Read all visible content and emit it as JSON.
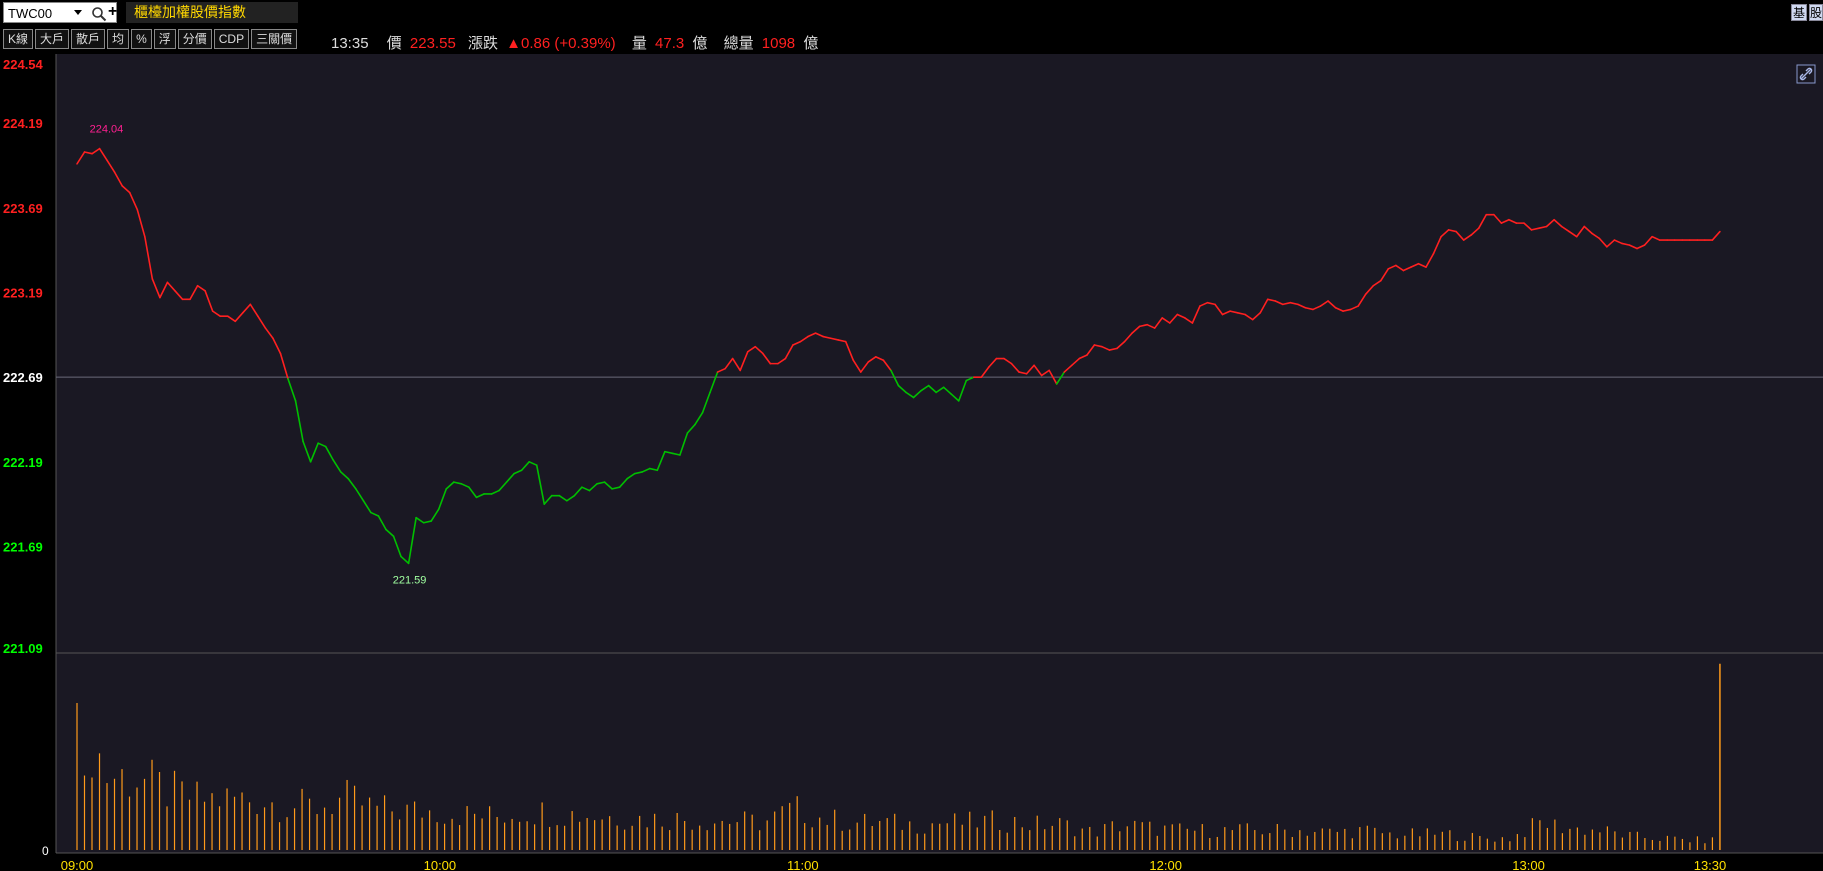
{
  "header": {
    "symbol": "TWC00",
    "index_name": "櫃檯加權股價指數",
    "corner_buttons": [
      "基",
      "股"
    ]
  },
  "toolbar": {
    "buttons": [
      "K線",
      "大戶",
      "散戶",
      "均",
      "%",
      "浮",
      "分價",
      "CDP",
      "三關價"
    ]
  },
  "quote": {
    "time": "13:35",
    "price_label": "價",
    "price": "223.55",
    "change_label": "漲跌",
    "change": "▲0.86 (+0.39%)",
    "volume_label": "量",
    "volume": "47.3",
    "volume_unit": "億",
    "total_label": "總量",
    "total_volume": "1098",
    "total_unit": "億"
  },
  "colors": {
    "up": "#ff2020",
    "down": "#00c000",
    "volume": "#ff9a1a",
    "time_axis": "#ffe000",
    "background": "#1a1823"
  },
  "chart_data": {
    "type": "line",
    "reference_price": 222.69,
    "y_ticks": [
      {
        "value": 224.54,
        "label": "224.54",
        "color": "red"
      },
      {
        "value": 224.19,
        "label": "224.19",
        "color": "red"
      },
      {
        "value": 223.69,
        "label": "223.69",
        "color": "red"
      },
      {
        "value": 223.19,
        "label": "223.19",
        "color": "red"
      },
      {
        "value": 222.69,
        "label": "222.69",
        "color": "white"
      },
      {
        "value": 222.19,
        "label": "222.19",
        "color": "green"
      },
      {
        "value": 221.69,
        "label": "221.69",
        "color": "green"
      },
      {
        "value": 221.09,
        "label": "221.09",
        "color": "green"
      }
    ],
    "ylim": [
      221.09,
      224.54
    ],
    "x_labels": [
      "09:00",
      "10:00",
      "11:00",
      "12:00",
      "13:00",
      "13:30"
    ],
    "x_range_minutes": [
      0,
      270
    ],
    "annotations": [
      {
        "label": "224.04",
        "t": 3,
        "value": 224.04,
        "kind": "high"
      },
      {
        "label": "221.59",
        "t": 44,
        "value": 221.59,
        "kind": "low"
      }
    ],
    "price_keypoints": [
      [
        0,
        223.95
      ],
      [
        1,
        224.02
      ],
      [
        2,
        224.01
      ],
      [
        3,
        224.04
      ],
      [
        4,
        223.97
      ],
      [
        5,
        223.9
      ],
      [
        6,
        223.82
      ],
      [
        7,
        223.78
      ],
      [
        8,
        223.68
      ],
      [
        9,
        223.52
      ],
      [
        10,
        223.27
      ],
      [
        11,
        223.16
      ],
      [
        12,
        223.25
      ],
      [
        13,
        223.2
      ],
      [
        14,
        223.15
      ],
      [
        15,
        223.15
      ],
      [
        16,
        223.23
      ],
      [
        17,
        223.2
      ],
      [
        18,
        223.08
      ],
      [
        19,
        223.05
      ],
      [
        20,
        223.05
      ],
      [
        21,
        223.02
      ],
      [
        22,
        223.07
      ],
      [
        23,
        223.12
      ],
      [
        24,
        223.05
      ],
      [
        25,
        222.98
      ],
      [
        26,
        222.92
      ],
      [
        27,
        222.83
      ],
      [
        28,
        222.68
      ],
      [
        29,
        222.55
      ],
      [
        30,
        222.31
      ],
      [
        31,
        222.19
      ],
      [
        32,
        222.3
      ],
      [
        33,
        222.28
      ],
      [
        34,
        222.2
      ],
      [
        35,
        222.13
      ],
      [
        36,
        222.09
      ],
      [
        37,
        222.03
      ],
      [
        38,
        221.96
      ],
      [
        39,
        221.89
      ],
      [
        40,
        221.87
      ],
      [
        41,
        221.79
      ],
      [
        42,
        221.75
      ],
      [
        43,
        221.63
      ],
      [
        44,
        221.59
      ],
      [
        45,
        221.86
      ],
      [
        46,
        221.83
      ],
      [
        47,
        221.84
      ],
      [
        48,
        221.91
      ],
      [
        49,
        222.03
      ],
      [
        50,
        222.07
      ],
      [
        51,
        222.06
      ],
      [
        52,
        222.04
      ],
      [
        53,
        221.98
      ],
      [
        54,
        222.0
      ],
      [
        55,
        222.0
      ],
      [
        56,
        222.02
      ],
      [
        57,
        222.07
      ],
      [
        58,
        222.12
      ],
      [
        59,
        222.14
      ],
      [
        60,
        222.19
      ],
      [
        61,
        222.17
      ],
      [
        62,
        221.94
      ],
      [
        63,
        221.99
      ],
      [
        64,
        221.99
      ],
      [
        65,
        221.96
      ],
      [
        66,
        221.99
      ],
      [
        67,
        222.04
      ],
      [
        68,
        222.02
      ],
      [
        69,
        222.06
      ],
      [
        70,
        222.07
      ],
      [
        71,
        222.03
      ],
      [
        72,
        222.04
      ],
      [
        73,
        222.09
      ],
      [
        74,
        222.12
      ],
      [
        75,
        222.13
      ],
      [
        76,
        222.15
      ],
      [
        77,
        222.14
      ],
      [
        78,
        222.25
      ],
      [
        79,
        222.24
      ],
      [
        80,
        222.23
      ],
      [
        81,
        222.36
      ],
      [
        82,
        222.41
      ],
      [
        83,
        222.48
      ],
      [
        84,
        222.6
      ],
      [
        85,
        222.72
      ],
      [
        86,
        222.74
      ],
      [
        87,
        222.8
      ],
      [
        88,
        222.73
      ],
      [
        89,
        222.84
      ],
      [
        90,
        222.87
      ],
      [
        91,
        222.83
      ],
      [
        92,
        222.77
      ],
      [
        93,
        222.77
      ],
      [
        94,
        222.8
      ],
      [
        95,
        222.88
      ],
      [
        96,
        222.9
      ],
      [
        97,
        222.93
      ],
      [
        98,
        222.95
      ],
      [
        99,
        222.93
      ],
      [
        100,
        222.92
      ],
      [
        101,
        222.91
      ],
      [
        102,
        222.9
      ],
      [
        103,
        222.79
      ],
      [
        104,
        222.72
      ],
      [
        105,
        222.78
      ],
      [
        106,
        222.81
      ],
      [
        107,
        222.79
      ],
      [
        108,
        222.73
      ],
      [
        109,
        222.64
      ],
      [
        110,
        222.6
      ],
      [
        111,
        222.57
      ],
      [
        112,
        222.61
      ],
      [
        113,
        222.64
      ],
      [
        114,
        222.6
      ],
      [
        115,
        222.63
      ],
      [
        116,
        222.59
      ],
      [
        117,
        222.55
      ],
      [
        118,
        222.67
      ],
      [
        119,
        222.69
      ],
      [
        120,
        222.69
      ],
      [
        121,
        222.75
      ],
      [
        122,
        222.8
      ],
      [
        123,
        222.8
      ],
      [
        124,
        222.77
      ],
      [
        125,
        222.72
      ],
      [
        126,
        222.71
      ],
      [
        127,
        222.76
      ],
      [
        128,
        222.7
      ],
      [
        129,
        222.73
      ],
      [
        130,
        222.65
      ],
      [
        131,
        222.72
      ],
      [
        132,
        222.76
      ],
      [
        133,
        222.8
      ],
      [
        134,
        222.82
      ],
      [
        135,
        222.88
      ],
      [
        136,
        222.87
      ],
      [
        137,
        222.85
      ],
      [
        138,
        222.86
      ],
      [
        139,
        222.9
      ],
      [
        140,
        222.95
      ],
      [
        141,
        222.99
      ],
      [
        142,
        223.0
      ],
      [
        143,
        222.98
      ],
      [
        144,
        223.04
      ],
      [
        145,
        223.01
      ],
      [
        146,
        223.06
      ],
      [
        147,
        223.04
      ],
      [
        148,
        223.01
      ],
      [
        149,
        223.11
      ],
      [
        150,
        223.13
      ],
      [
        151,
        223.12
      ],
      [
        152,
        223.06
      ],
      [
        153,
        223.08
      ],
      [
        154,
        223.07
      ],
      [
        155,
        223.06
      ],
      [
        156,
        223.03
      ],
      [
        157,
        223.07
      ],
      [
        158,
        223.15
      ],
      [
        159,
        223.14
      ],
      [
        160,
        223.12
      ],
      [
        161,
        223.13
      ],
      [
        162,
        223.12
      ],
      [
        163,
        223.1
      ],
      [
        164,
        223.09
      ],
      [
        165,
        223.11
      ],
      [
        166,
        223.14
      ],
      [
        167,
        223.1
      ],
      [
        168,
        223.08
      ],
      [
        169,
        223.09
      ],
      [
        170,
        223.11
      ],
      [
        171,
        223.18
      ],
      [
        172,
        223.23
      ],
      [
        173,
        223.26
      ],
      [
        174,
        223.33
      ],
      [
        175,
        223.35
      ],
      [
        176,
        223.32
      ],
      [
        177,
        223.34
      ],
      [
        178,
        223.36
      ],
      [
        179,
        223.34
      ],
      [
        180,
        223.42
      ],
      [
        181,
        223.52
      ],
      [
        182,
        223.56
      ],
      [
        183,
        223.55
      ],
      [
        184,
        223.5
      ],
      [
        185,
        223.53
      ],
      [
        186,
        223.57
      ],
      [
        187,
        223.65
      ],
      [
        188,
        223.65
      ],
      [
        189,
        223.6
      ],
      [
        190,
        223.62
      ],
      [
        191,
        223.6
      ],
      [
        192,
        223.6
      ],
      [
        193,
        223.56
      ],
      [
        194,
        223.57
      ],
      [
        195,
        223.58
      ],
      [
        196,
        223.62
      ],
      [
        197,
        223.58
      ],
      [
        198,
        223.55
      ],
      [
        199,
        223.52
      ],
      [
        200,
        223.58
      ],
      [
        201,
        223.54
      ],
      [
        202,
        223.51
      ],
      [
        203,
        223.46
      ],
      [
        204,
        223.5
      ],
      [
        205,
        223.48
      ],
      [
        206,
        223.47
      ],
      [
        207,
        223.45
      ],
      [
        208,
        223.47
      ],
      [
        209,
        223.52
      ],
      [
        210,
        223.5
      ],
      [
        211,
        223.5
      ],
      [
        212,
        223.5
      ],
      [
        213,
        223.5
      ],
      [
        214,
        223.5
      ],
      [
        215,
        223.5
      ],
      [
        216,
        223.5
      ],
      [
        217,
        223.5
      ],
      [
        218,
        223.55
      ]
    ],
    "volume_keypoints": [
      [
        0,
        0.75
      ],
      [
        1,
        0.38
      ],
      [
        2,
        0.37
      ],
      [
        3,
        0.3
      ],
      [
        4,
        0.26
      ],
      [
        5,
        0.26
      ],
      [
        6,
        0.26
      ],
      [
        7,
        0.23
      ],
      [
        8,
        0.22
      ],
      [
        9,
        0.26
      ],
      [
        10,
        0.21
      ],
      [
        11,
        0.2
      ],
      [
        12,
        0.2
      ],
      [
        13,
        0.18
      ],
      [
        14,
        0.17
      ],
      [
        15,
        0.2
      ],
      [
        16,
        0.19
      ],
      [
        17,
        0.18
      ],
      [
        18,
        0.17
      ],
      [
        19,
        0.16
      ],
      [
        20,
        0.16
      ],
      [
        21,
        0.15
      ],
      [
        22,
        0.15
      ],
      [
        23,
        0.14
      ],
      [
        24,
        0.21
      ],
      [
        25,
        0.16
      ],
      [
        26,
        0.14
      ],
      [
        27,
        0.14
      ],
      [
        28,
        0.13
      ],
      [
        29,
        0.14
      ],
      [
        30,
        0.14
      ],
      [
        31,
        0.15
      ],
      [
        32,
        0.13
      ],
      [
        33,
        0.13
      ],
      [
        34,
        0.09
      ],
      [
        35,
        0.13
      ],
      [
        36,
        0.11
      ],
      [
        37,
        0.1
      ],
      [
        38,
        0.1
      ],
      [
        39,
        0.1
      ],
      [
        40,
        0.1
      ],
      [
        41,
        0.1
      ],
      [
        42,
        0.09
      ],
      [
        43,
        0.1
      ],
      [
        44,
        0.08
      ],
      [
        45,
        0.08
      ],
      [
        46,
        0.08
      ],
      [
        47,
        0.06
      ],
      [
        48,
        0.06
      ],
      [
        49,
        0.14
      ],
      [
        50,
        0.11
      ],
      [
        51,
        0.1
      ],
      [
        52,
        0.07
      ],
      [
        53,
        0.06
      ],
      [
        54,
        0.05
      ],
      [
        55,
        0.05
      ]
    ],
    "volume_scale_label": "0"
  }
}
